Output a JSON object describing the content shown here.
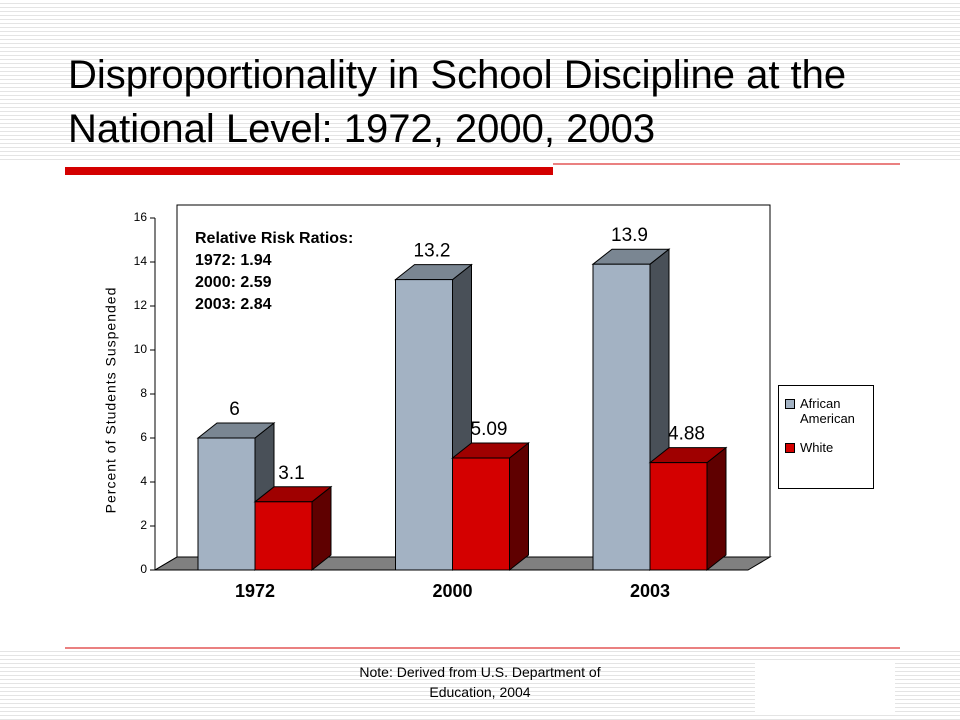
{
  "chart_data": {
    "type": "bar3d",
    "title": "Disproportionality in School Discipline at the National Level: 1972, 2000, 2003",
    "y_label": "Percent of Students Suspended",
    "categories": [
      "1972",
      "2000",
      "2003"
    ],
    "series": [
      {
        "name": "African American",
        "color": "#a3b2c3",
        "values": [
          6,
          13.2,
          13.9
        ]
      },
      {
        "name": "White",
        "color": "#d40000",
        "values": [
          3.1,
          5.09,
          4.88
        ]
      }
    ],
    "ylim": [
      0,
      16
    ],
    "yticks": [
      0,
      2,
      4,
      6,
      8,
      10,
      12,
      14,
      16
    ],
    "annotation": {
      "title": "Relative Risk Ratios:",
      "lines": [
        "1972: 1.94",
        "2000: 2.59",
        "2003: 2.84"
      ]
    },
    "note": "Note: Derived from U.S. Department of Education, 2004"
  }
}
